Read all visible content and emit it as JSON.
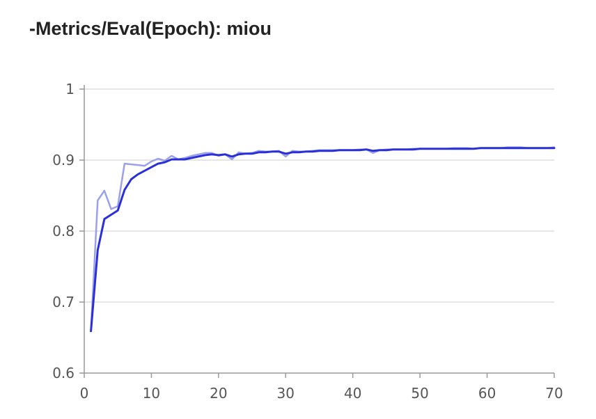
{
  "title": "-Metrics/Eval(Epoch): miou",
  "colors": {
    "smoothed": "#2b30d6",
    "raw": "#9aa0ec",
    "grid": "#dddddd",
    "axis": "#999999",
    "text": "#555555"
  },
  "chart_data": {
    "type": "line",
    "title": "-Metrics/Eval(Epoch): miou",
    "xlabel": "",
    "ylabel": "",
    "xlim": [
      0,
      70
    ],
    "ylim": [
      0.6,
      1
    ],
    "x_ticks": [
      0,
      10,
      20,
      30,
      40,
      50,
      60,
      70
    ],
    "y_ticks": [
      0.6,
      0.7,
      0.8,
      0.9,
      1
    ],
    "x_tick_labels": [
      "0",
      "10",
      "20",
      "30",
      "40",
      "50",
      "60",
      "70"
    ],
    "y_tick_labels": [
      "0.6",
      "0.7",
      "0.8",
      "0.9",
      "1"
    ],
    "grid": true,
    "legend": "none",
    "series": [
      {
        "style": "raw",
        "x": [
          1,
          2,
          3,
          4,
          5,
          6,
          7,
          8,
          9,
          10,
          11,
          12,
          13,
          14,
          15,
          16,
          17,
          18,
          19,
          20,
          21,
          22,
          23,
          24,
          25,
          26,
          27,
          28,
          29,
          30,
          31,
          32,
          33,
          34,
          35,
          36,
          37,
          38,
          39,
          40,
          41,
          42,
          43,
          44,
          45,
          46,
          47,
          48,
          49,
          50,
          51,
          52,
          53,
          54,
          55,
          56,
          57,
          58,
          59,
          60,
          61,
          62,
          63,
          64,
          65,
          66,
          67,
          68,
          69,
          70
        ],
        "y": [
          0.66,
          0.843,
          0.857,
          0.831,
          0.835,
          0.895,
          0.894,
          0.893,
          0.892,
          0.898,
          0.902,
          0.899,
          0.906,
          0.901,
          0.903,
          0.906,
          0.908,
          0.91,
          0.91,
          0.906,
          0.908,
          0.901,
          0.911,
          0.909,
          0.91,
          0.913,
          0.912,
          0.912,
          0.913,
          0.905,
          0.913,
          0.912,
          0.912,
          0.913,
          0.914,
          0.914,
          0.914,
          0.914,
          0.914,
          0.914,
          0.915,
          0.915,
          0.91,
          0.914,
          0.915,
          0.915,
          0.915,
          0.915,
          0.916,
          0.916,
          0.916,
          0.916,
          0.916,
          0.916,
          0.917,
          0.917,
          0.917,
          0.916,
          0.917,
          0.917,
          0.917,
          0.917,
          0.918,
          0.918,
          0.918,
          0.917,
          0.917,
          0.917,
          0.917,
          0.918
        ]
      },
      {
        "style": "smoothed",
        "x": [
          1,
          2,
          3,
          4,
          5,
          6,
          7,
          8,
          9,
          10,
          11,
          12,
          13,
          14,
          15,
          16,
          17,
          18,
          19,
          20,
          21,
          22,
          23,
          24,
          25,
          26,
          27,
          28,
          29,
          30,
          31,
          32,
          33,
          34,
          35,
          36,
          37,
          38,
          39,
          40,
          41,
          42,
          43,
          44,
          45,
          46,
          47,
          48,
          49,
          50,
          51,
          52,
          53,
          54,
          55,
          56,
          57,
          58,
          59,
          60,
          61,
          62,
          63,
          64,
          65,
          66,
          67,
          68,
          69,
          70
        ],
        "y": [
          0.659,
          0.773,
          0.817,
          0.823,
          0.829,
          0.858,
          0.873,
          0.88,
          0.885,
          0.89,
          0.895,
          0.897,
          0.901,
          0.901,
          0.901,
          0.903,
          0.905,
          0.907,
          0.908,
          0.907,
          0.908,
          0.905,
          0.908,
          0.909,
          0.909,
          0.911,
          0.911,
          0.912,
          0.912,
          0.909,
          0.911,
          0.911,
          0.912,
          0.912,
          0.913,
          0.913,
          0.913,
          0.914,
          0.914,
          0.914,
          0.914,
          0.915,
          0.913,
          0.914,
          0.914,
          0.915,
          0.915,
          0.915,
          0.915,
          0.916,
          0.916,
          0.916,
          0.916,
          0.916,
          0.916,
          0.916,
          0.916,
          0.916,
          0.917,
          0.917,
          0.917,
          0.917,
          0.917,
          0.917,
          0.917,
          0.917,
          0.917,
          0.917,
          0.917,
          0.917
        ]
      }
    ]
  }
}
